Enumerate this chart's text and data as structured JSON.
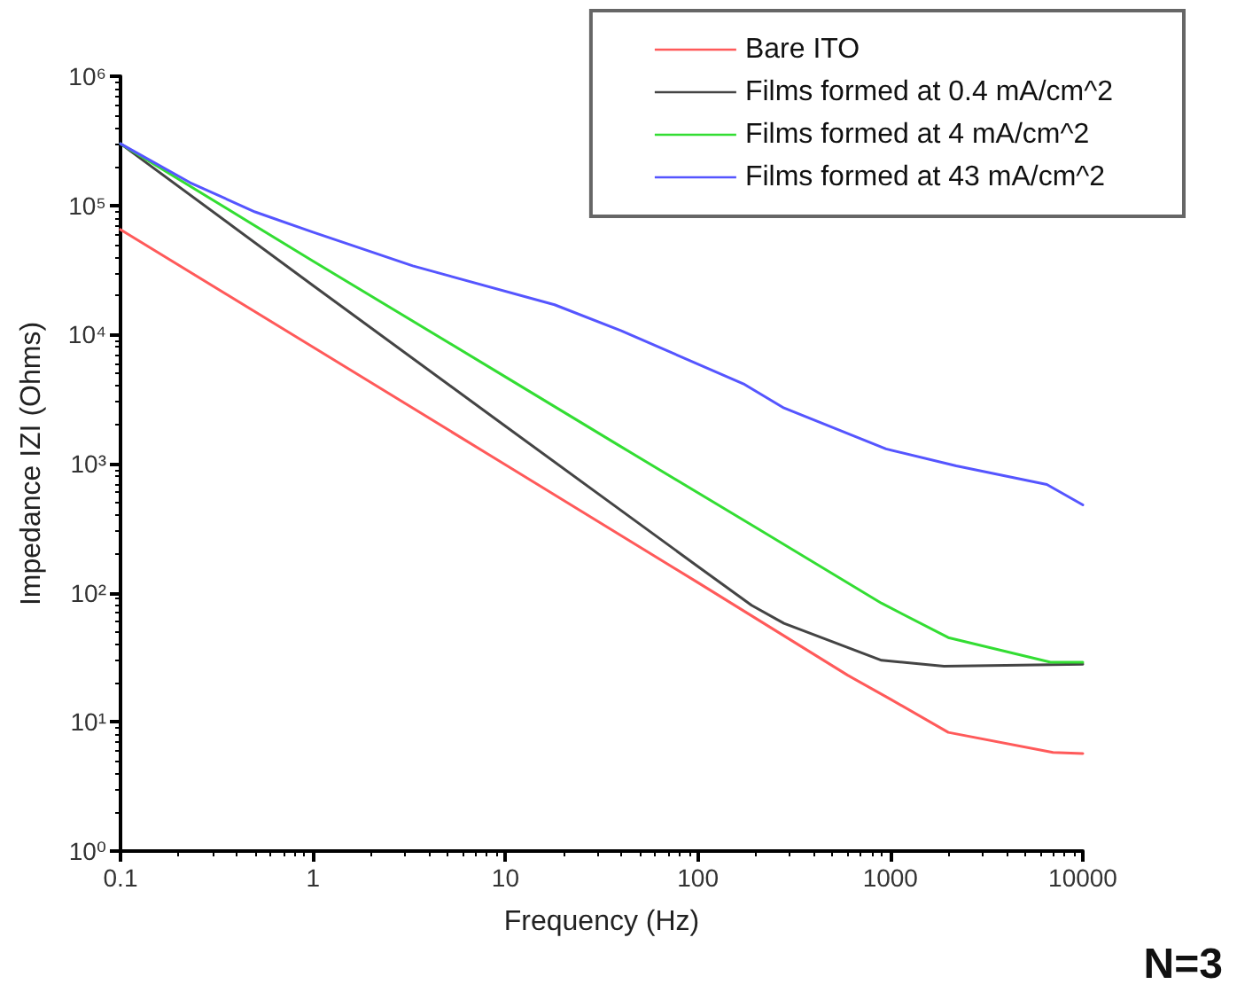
{
  "chart_data": {
    "type": "line",
    "xlabel": "Frequency (Hz)",
    "ylabel": "Impedance IZI (Ohms)",
    "log": "xy",
    "grid": false,
    "legend": "top right",
    "line_style": "solid",
    "marker": "none",
    "xlim": [
      0.1,
      10000
    ],
    "xticks": [
      0.1,
      1,
      10,
      100,
      1000,
      10000
    ],
    "ylim": [
      1,
      1000000
    ],
    "yticks": [
      {
        "value": 1,
        "label": "10⁰"
      },
      {
        "value": 10,
        "label": "10¹"
      },
      {
        "value": 100,
        "label": "10²"
      },
      {
        "value": 1000,
        "label": "10³"
      },
      {
        "value": 10000,
        "label": "10⁴"
      },
      {
        "value": 100000,
        "label": "10⁵"
      },
      {
        "value": 1000000,
        "label": "10⁶"
      }
    ],
    "series": [
      {
        "name": "Bare ITO",
        "color": "#ff5a5a",
        "x": [
          0.1,
          1,
          10,
          100,
          600,
          1000,
          2000,
          7000,
          10000
        ],
        "values": [
          65000,
          8000,
          980,
          120,
          23,
          15,
          8.3,
          5.8,
          5.7
        ]
      },
      {
        "name": "Films formed at 0.4 mA/cm^2",
        "color": "#444444",
        "x": [
          0.1,
          1,
          10,
          100,
          190,
          280,
          900,
          1900,
          10000
        ],
        "values": [
          300000,
          24000,
          1950,
          160,
          80,
          58,
          30,
          27,
          28
        ]
      },
      {
        "name": "Films formed at 4 mA/cm^2",
        "color": "#33dd33",
        "x": [
          0.1,
          1,
          10,
          39,
          200,
          900,
          2000,
          6800,
          10000
        ],
        "values": [
          300000,
          37000,
          4700,
          1380,
          320,
          83,
          45,
          29,
          29
        ]
      },
      {
        "name": "Films formed at 43 mA/cm^2",
        "color": "#5555ff",
        "x": [
          0.1,
          0.23,
          0.5,
          1,
          3.3,
          18,
          40,
          175,
          280,
          950,
          2200,
          6500,
          10000
        ],
        "values": [
          300000,
          150000,
          89000,
          62000,
          34000,
          17000,
          10700,
          4100,
          2700,
          1300,
          960,
          690,
          480
        ]
      }
    ],
    "annotations": [
      "N=3"
    ]
  }
}
